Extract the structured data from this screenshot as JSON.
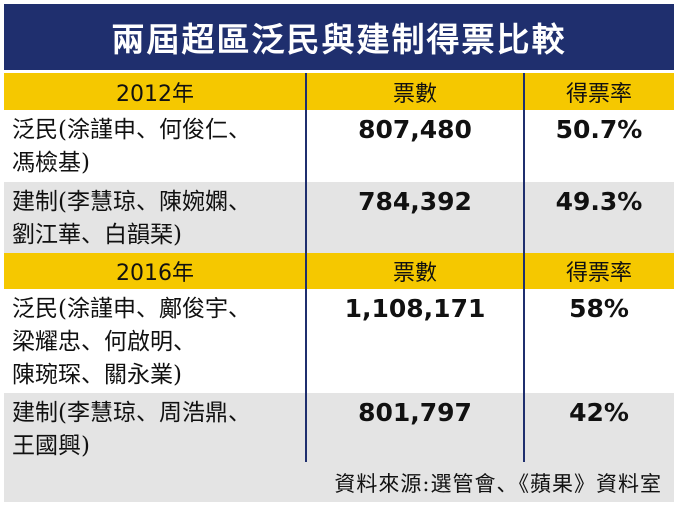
{
  "title": "兩屆超區泛民與建制得票比較",
  "sections": [
    {
      "year": "2012年",
      "col_votes": "票數",
      "col_share": "得票率",
      "rows": [
        {
          "camp_lines": [
            "泛民(涂謹申、何俊仁、",
            "馮檢基)"
          ],
          "votes": "807,480",
          "share": "50.7%"
        },
        {
          "camp_lines": [
            "建制(李慧琼、陳婉嫻、",
            "劉江華、白韻琹)"
          ],
          "votes": "784,392",
          "share": "49.3%"
        }
      ]
    },
    {
      "year": "2016年",
      "col_votes": "票數",
      "col_share": "得票率",
      "rows": [
        {
          "camp_lines": [
            "泛民(涂謹申、鄺俊宇、",
            "梁耀忠、何啟明、",
            "陳琬琛、關永業)"
          ],
          "votes": "1,108,171",
          "share": "58%"
        },
        {
          "camp_lines": [
            "建制(李慧琼、周浩鼎、",
            "王國興)"
          ],
          "votes": "801,797",
          "share": "42%"
        }
      ]
    }
  ],
  "source": "資料來源:選管會、《蘋果》資料室",
  "colors": {
    "title_bg": "#1f2f6e",
    "header_bg": "#f5c800",
    "row_alt_bg": "#e4e4e4"
  }
}
